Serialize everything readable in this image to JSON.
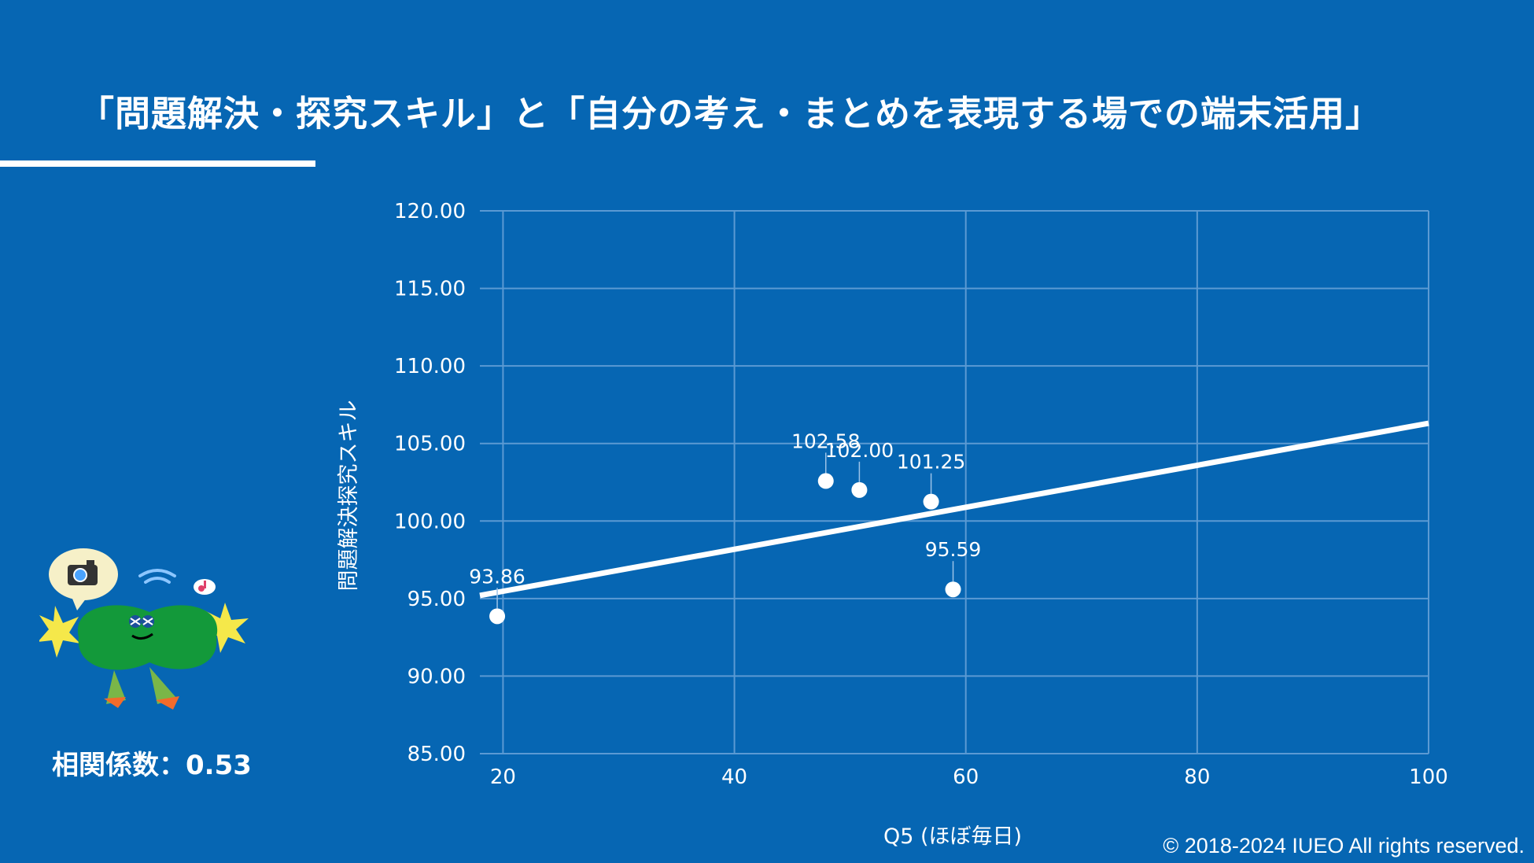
{
  "slide": {
    "title": "「問題解決・探究スキル」と「自分の考え・まとめを表現する場での端末活用」",
    "coefficient_label": "相関係数：0.53",
    "copyright": "© 2018-2024 IUEO All rights reserved."
  },
  "colors": {
    "background": "#0666b3",
    "grid": "#5b9ad3",
    "foreground": "#ffffff"
  },
  "chart_data": {
    "type": "scatter",
    "title": "",
    "xlabel": "Q5 (ほぼ毎日)",
    "ylabel": "問題解決探究スキル",
    "xlim": [
      18,
      100
    ],
    "ylim": [
      85,
      120
    ],
    "x_ticks": [
      20,
      40,
      60,
      80,
      100
    ],
    "y_ticks": [
      85,
      90,
      95,
      100,
      105,
      110,
      115,
      120
    ],
    "x_tick_labels": [
      "20",
      "40",
      "60",
      "80",
      "100"
    ],
    "y_tick_labels": [
      "85.00",
      "90.00",
      "95.00",
      "100.00",
      "105.00",
      "110.00",
      "115.00",
      "120.00"
    ],
    "grid": true,
    "points": [
      {
        "x": 19.5,
        "y": 93.86,
        "label": "93.86"
      },
      {
        "x": 47.9,
        "y": 102.58,
        "label": "102.58"
      },
      {
        "x": 50.8,
        "y": 102.0,
        "label": "102.00"
      },
      {
        "x": 57.0,
        "y": 101.25,
        "label": "101.25"
      },
      {
        "x": 58.9,
        "y": 95.59,
        "label": "95.59"
      }
    ],
    "trendline": {
      "x": [
        18,
        100
      ],
      "y": [
        95.2,
        106.3
      ]
    }
  }
}
